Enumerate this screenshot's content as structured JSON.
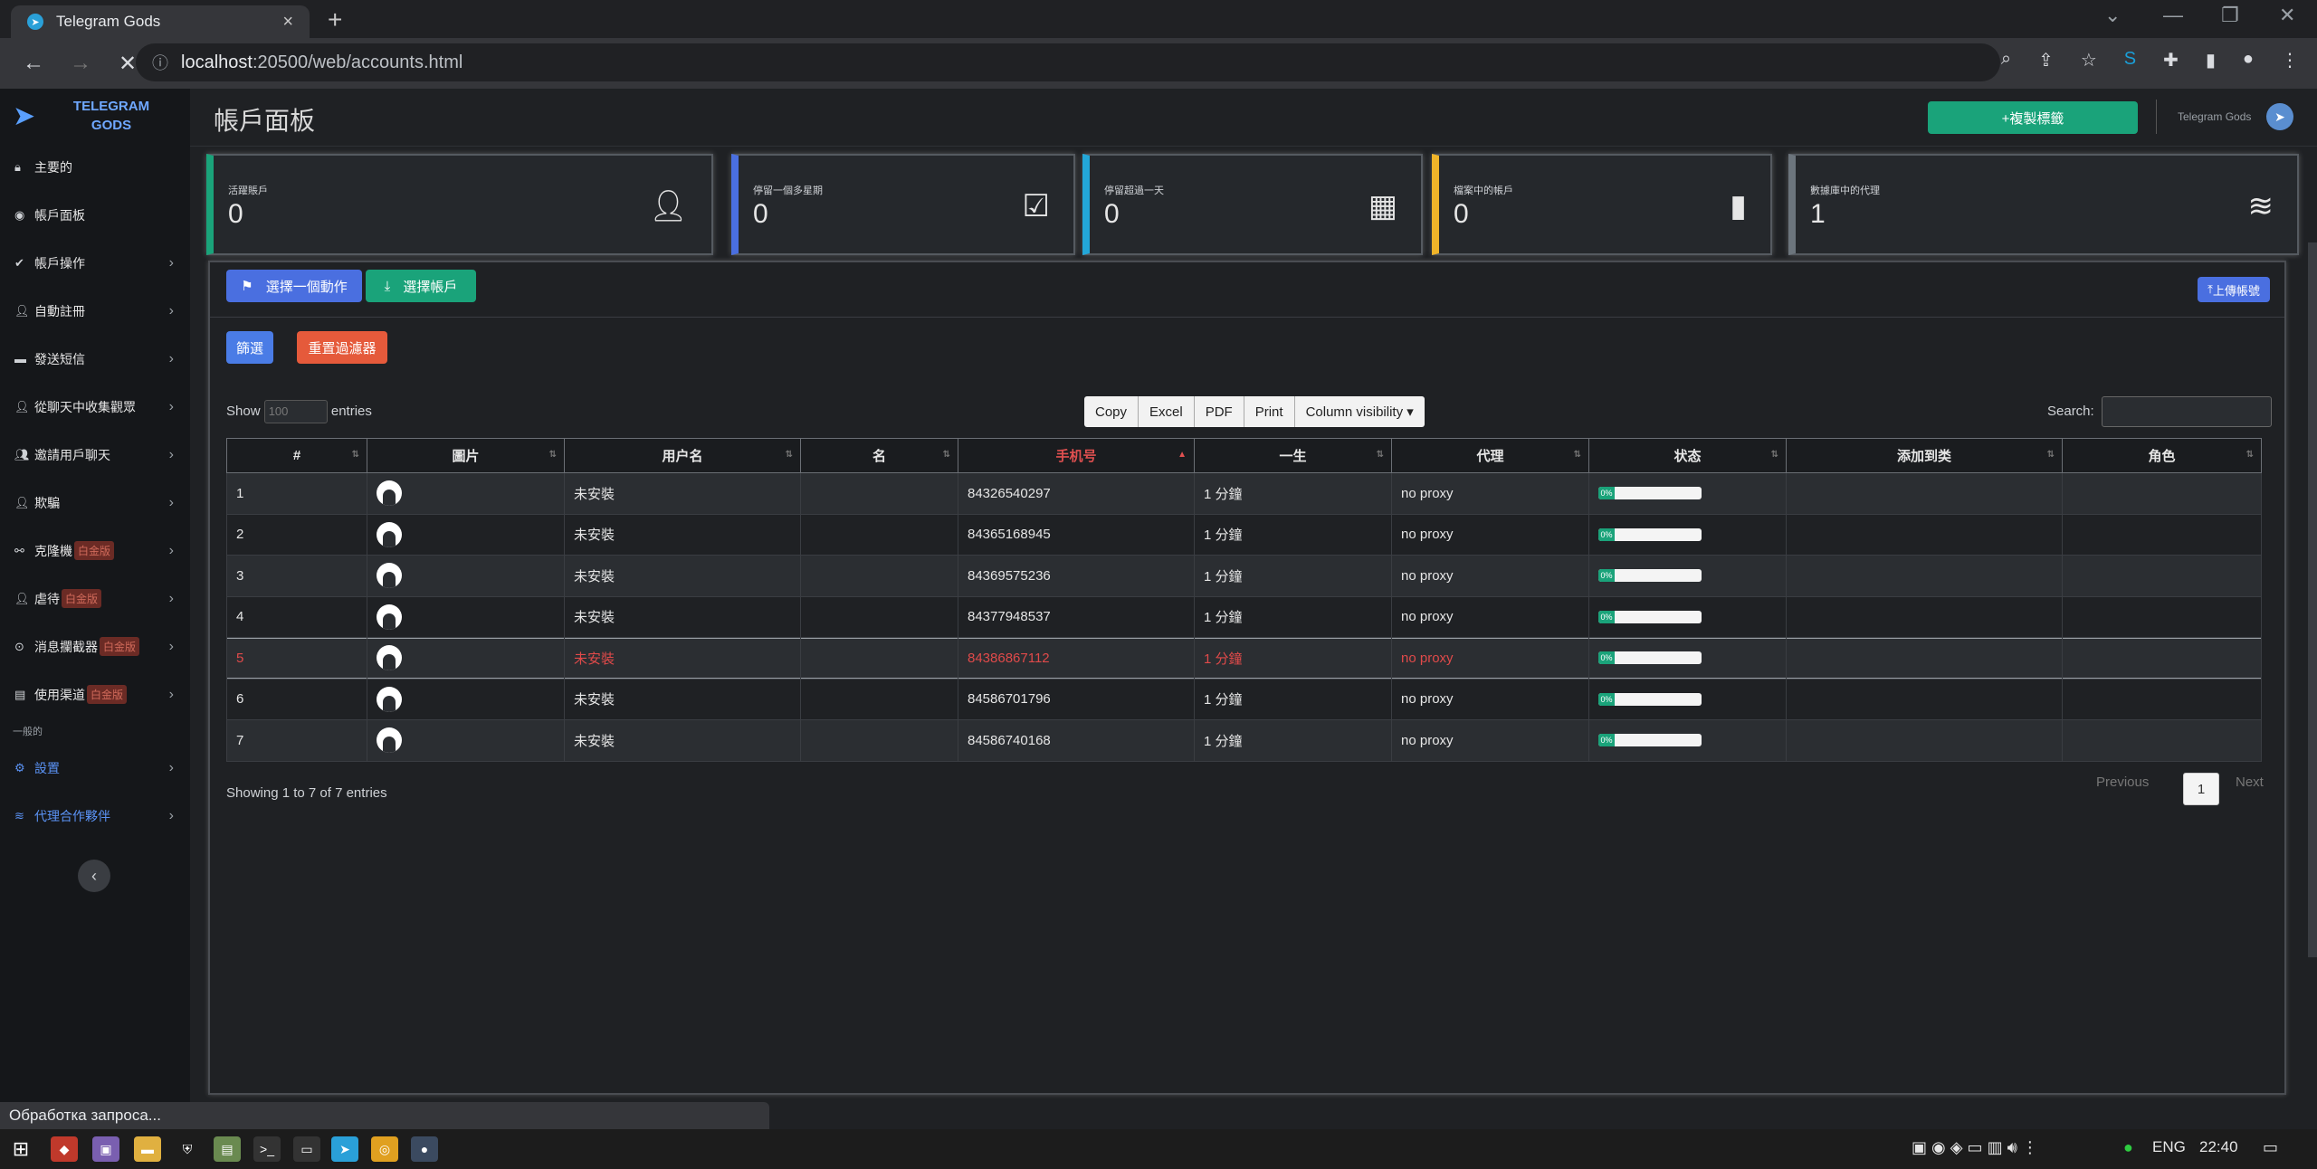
{
  "browser": {
    "tab_title": "Telegram Gods",
    "tab_close": "×",
    "new_tab": "+",
    "url_host": "localhost",
    "url_rest": ":20500/web/accounts.html",
    "status_text": "Обработка запроса..."
  },
  "sidebar": {
    "brand_line1": "TELEGRAM",
    "brand_line2": "GODS",
    "items": [
      {
        "label": "主要的"
      },
      {
        "label": "帳戶面板"
      },
      {
        "label": "帳戶操作"
      },
      {
        "label": "自動註冊"
      },
      {
        "label": "發送短信"
      },
      {
        "label": "從聊天中收集觀眾"
      },
      {
        "label": "邀請用戶聊天"
      },
      {
        "label": "欺騙"
      },
      {
        "label": "克隆機",
        "badge": "白金版"
      },
      {
        "label": "虐待",
        "badge": "白金版"
      },
      {
        "label": "消息攔截器",
        "badge": "白金版"
      },
      {
        "label": "使用渠道",
        "badge": "白金版"
      }
    ],
    "section_label": "一般的",
    "settings_label": "設置",
    "affiliate_label": "代理合作夥伴"
  },
  "header": {
    "title": "帳戶面板",
    "duplicate_button": "+複製標籤",
    "tg_link": "Telegram Gods"
  },
  "cards": [
    {
      "label": "活躍賬戶",
      "value": "0",
      "icon": "user-icon",
      "color": "#1aa37a"
    },
    {
      "label": "停留一個多星期",
      "value": "0",
      "icon": "calendar-check-icon",
      "color": "#4a6fe0"
    },
    {
      "label": "停留超過一天",
      "value": "0",
      "icon": "calendar-icon",
      "color": "#23a7d8"
    },
    {
      "label": "檔案中的帳戶",
      "value": "0",
      "icon": "archive-icon",
      "color": "#f0b429"
    },
    {
      "label": "數據庫中的代理",
      "value": "1",
      "icon": "wifi-icon",
      "color": "#6c757d"
    }
  ],
  "actions": {
    "select_action": "選擇一個動作",
    "select_accounts": "選擇帳戶",
    "upload_accounts": "上傳帳號",
    "filter": "篩選",
    "reset_filter": "重置過濾器"
  },
  "datatable": {
    "show_label": "Show",
    "length_value": "100",
    "entries_label": "entries",
    "export_buttons": [
      "Copy",
      "Excel",
      "PDF",
      "Print",
      "Column visibility ▾"
    ],
    "search_label": "Search:",
    "columns": [
      "#",
      "圖片",
      "用户名",
      "名",
      "手机号",
      "一生",
      "代理",
      "状态",
      "添加到类",
      "角色"
    ],
    "rows": [
      {
        "num": "1",
        "username": "未安裝",
        "phone": "84326540297",
        "life": "1 分鐘",
        "proxy": "no proxy",
        "status": "0%"
      },
      {
        "num": "2",
        "username": "未安裝",
        "phone": "84365168945",
        "life": "1 分鐘",
        "proxy": "no proxy",
        "status": "0%"
      },
      {
        "num": "3",
        "username": "未安裝",
        "phone": "84369575236",
        "life": "1 分鐘",
        "proxy": "no proxy",
        "status": "0%"
      },
      {
        "num": "4",
        "username": "未安裝",
        "phone": "84377948537",
        "life": "1 分鐘",
        "proxy": "no proxy",
        "status": "0%"
      },
      {
        "num": "5",
        "username": "未安裝",
        "phone": "84386867112",
        "life": "1 分鐘",
        "proxy": "no proxy",
        "status": "0%"
      },
      {
        "num": "6",
        "username": "未安裝",
        "phone": "84586701796",
        "life": "1 分鐘",
        "proxy": "no proxy",
        "status": "0%"
      },
      {
        "num": "7",
        "username": "未安裝",
        "phone": "84586740168",
        "life": "1 分鐘",
        "proxy": "no proxy",
        "status": "0%"
      }
    ],
    "info": "Showing 1 to 7 of 7 entries",
    "previous": "Previous",
    "page": "1",
    "next": "Next"
  },
  "taskbar": {
    "lang": "ENG",
    "time": "22:40"
  }
}
